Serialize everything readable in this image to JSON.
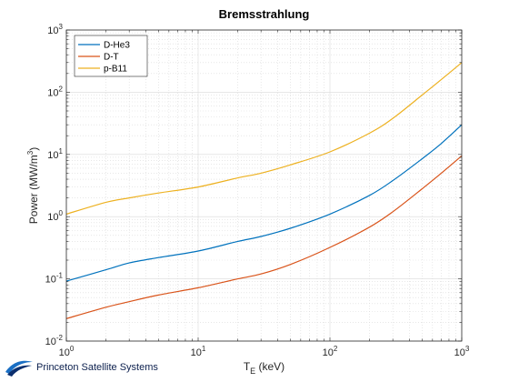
{
  "chart_data": {
    "type": "line",
    "title": "Bremsstrahlung",
    "xlabel": {
      "main": "T",
      "sub": "E",
      "rest": " (keV)"
    },
    "ylabel": {
      "main": "Power (MW/m",
      "sup": "3",
      "rest": ")"
    },
    "x_scale": "log",
    "y_scale": "log",
    "xlim": [
      1,
      1000
    ],
    "ylim": [
      0.01,
      1000
    ],
    "grid": true,
    "legend_position": "top-left",
    "x_ticks": [
      {
        "base": "10",
        "exp": "0",
        "value": 1
      },
      {
        "base": "10",
        "exp": "1",
        "value": 10
      },
      {
        "base": "10",
        "exp": "2",
        "value": 100
      },
      {
        "base": "10",
        "exp": "3",
        "value": 1000
      }
    ],
    "y_ticks": [
      {
        "base": "10",
        "exp": "-2",
        "value": 0.01
      },
      {
        "base": "10",
        "exp": "-1",
        "value": 0.1
      },
      {
        "base": "10",
        "exp": "0",
        "value": 1
      },
      {
        "base": "10",
        "exp": "1",
        "value": 10
      },
      {
        "base": "10",
        "exp": "2",
        "value": 100
      },
      {
        "base": "10",
        "exp": "3",
        "value": 1000
      }
    ],
    "x": [
      1,
      2,
      3,
      5,
      10,
      20,
      30,
      50,
      100,
      200,
      300,
      500,
      700,
      1000
    ],
    "series": [
      {
        "name": "D-He3",
        "color": "#0072BD",
        "values": [
          0.092,
          0.14,
          0.18,
          0.22,
          0.28,
          0.4,
          0.48,
          0.65,
          1.1,
          2.2,
          3.8,
          8.5,
          15,
          30
        ]
      },
      {
        "name": "D-T",
        "color": "#D95319",
        "values": [
          0.023,
          0.035,
          0.043,
          0.055,
          0.072,
          0.1,
          0.12,
          0.17,
          0.32,
          0.68,
          1.2,
          2.8,
          5,
          9.5
        ]
      },
      {
        "name": "p-B11",
        "color": "#EDB120",
        "values": [
          1.1,
          1.7,
          2.0,
          2.4,
          3.0,
          4.2,
          5.0,
          6.8,
          11,
          22,
          38,
          90,
          160,
          300
        ]
      }
    ]
  },
  "logo": {
    "text": "Princeton Satellite Systems",
    "icon": "swoosh-logo-icon"
  }
}
